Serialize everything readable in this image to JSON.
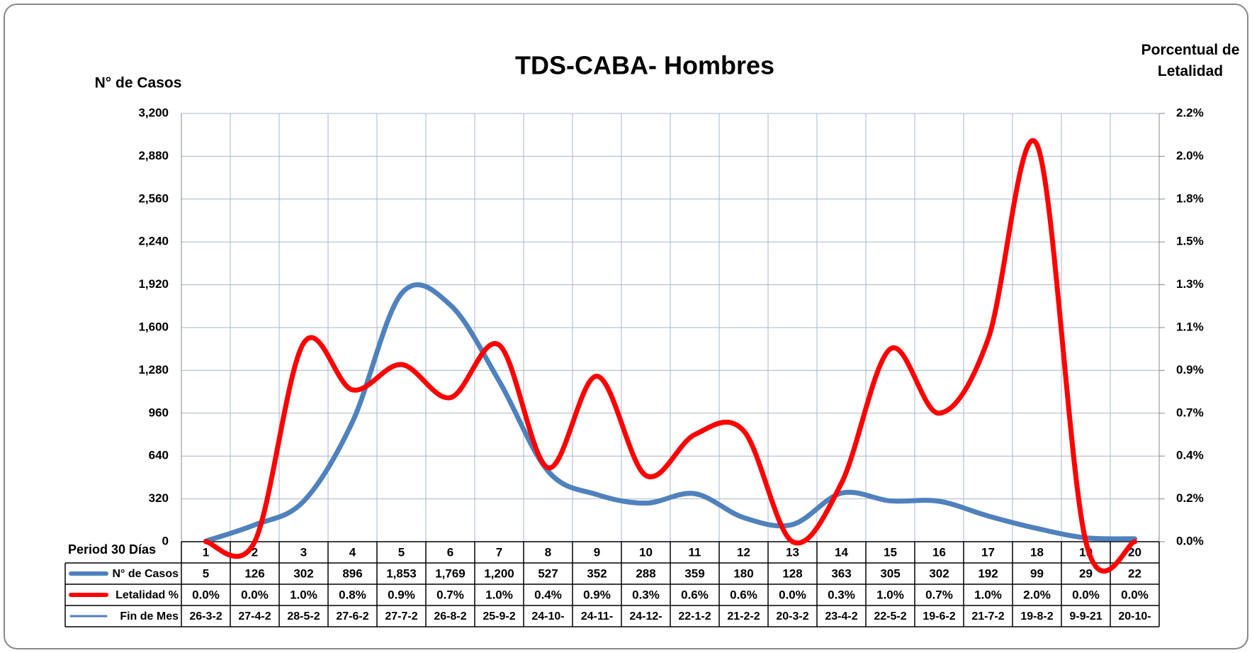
{
  "chart_data": {
    "type": "line",
    "title": "TDS-CABA- Hombres",
    "ylabel": "N° de Casos",
    "y2label": "Porcentual de Letalidad",
    "xlabel": "Period 30 Días",
    "categories": [
      "1",
      "2",
      "3",
      "4",
      "5",
      "6",
      "7",
      "8",
      "9",
      "10",
      "11",
      "12",
      "13",
      "14",
      "15",
      "16",
      "17",
      "18",
      "19",
      "20"
    ],
    "series": [
      {
        "name": "N° de Casos",
        "color": "#4f81bd",
        "values": [
          5,
          126,
          302,
          896,
          1853,
          1769,
          1200,
          527,
          352,
          288,
          359,
          180,
          128,
          363,
          305,
          302,
          192,
          99,
          29,
          22
        ],
        "value_labels": [
          "5",
          "126",
          "302",
          "896",
          "1,853",
          "1,769",
          "1,200",
          "527",
          "352",
          "288",
          "359",
          "180",
          "128",
          "363",
          "305",
          "302",
          "192",
          "99",
          "29",
          "22"
        ]
      },
      {
        "name": "Letalidad %",
        "color": "#ff0000",
        "axis": "y2",
        "values": [
          0,
          0,
          1.02,
          0.78,
          0.91,
          0.74,
          1.01,
          0.38,
          0.85,
          0.34,
          0.55,
          0.57,
          0,
          0.3,
          0.99,
          0.66,
          1.04,
          2.04,
          0,
          0
        ],
        "value_labels": [
          "0.0%",
          "0.0%",
          "1.0%",
          "0.8%",
          "0.9%",
          "0.7%",
          "1.0%",
          "0.4%",
          "0.9%",
          "0.3%",
          "0.6%",
          "0.6%",
          "0.0%",
          "0.3%",
          "1.0%",
          "0.7%",
          "1.0%",
          "2.0%",
          "0.0%",
          "0.0%"
        ]
      }
    ],
    "fin_de_mes": {
      "name": "Fin de Mes",
      "color": "#4f81bd",
      "values": [
        "26-3-2",
        "27-4-2",
        "28-5-2",
        "27-6-2",
        "27-7-2",
        "26-8-2",
        "25-9-2",
        "24-10-",
        "24-11-",
        "24-12-",
        "22-1-2",
        "21-2-2",
        "20-3-2",
        "23-4-2",
        "22-5-2",
        "19-6-2",
        "21-7-2",
        "19-8-2",
        "9-9-21",
        "20-10-"
      ]
    },
    "ylim": [
      0,
      3200
    ],
    "yticks": [
      0,
      320,
      640,
      960,
      {
        "value": 1280,
        "label": "1,280"
      },
      {
        "value": 1600,
        "label": "1,600"
      },
      {
        "value": 1920,
        "label": "1,920"
      },
      {
        "value": 2240,
        "label": "2,240"
      },
      {
        "value": 2560,
        "label": "2,560"
      },
      {
        "value": 2880,
        "label": "2,880"
      },
      {
        "value": 3200,
        "label": "3,200"
      }
    ],
    "y2lim": [
      0,
      2.2
    ],
    "y2ticks": [
      {
        "value": 0,
        "label": "0.0%"
      },
      {
        "value": 0.22,
        "label": "0.2%"
      },
      {
        "value": 0.44,
        "label": "0.4%"
      },
      {
        "value": 0.66,
        "label": "0.7%"
      },
      {
        "value": 0.88,
        "label": "0.9%"
      },
      {
        "value": 1.1,
        "label": "1.1%"
      },
      {
        "value": 1.32,
        "label": "1.3%"
      },
      {
        "value": 1.54,
        "label": "1.5%"
      },
      {
        "value": 1.76,
        "label": "1.8%"
      },
      {
        "value": 1.98,
        "label": "2.0%"
      },
      {
        "value": 2.2,
        "label": "2.2%"
      }
    ],
    "grid": true
  }
}
